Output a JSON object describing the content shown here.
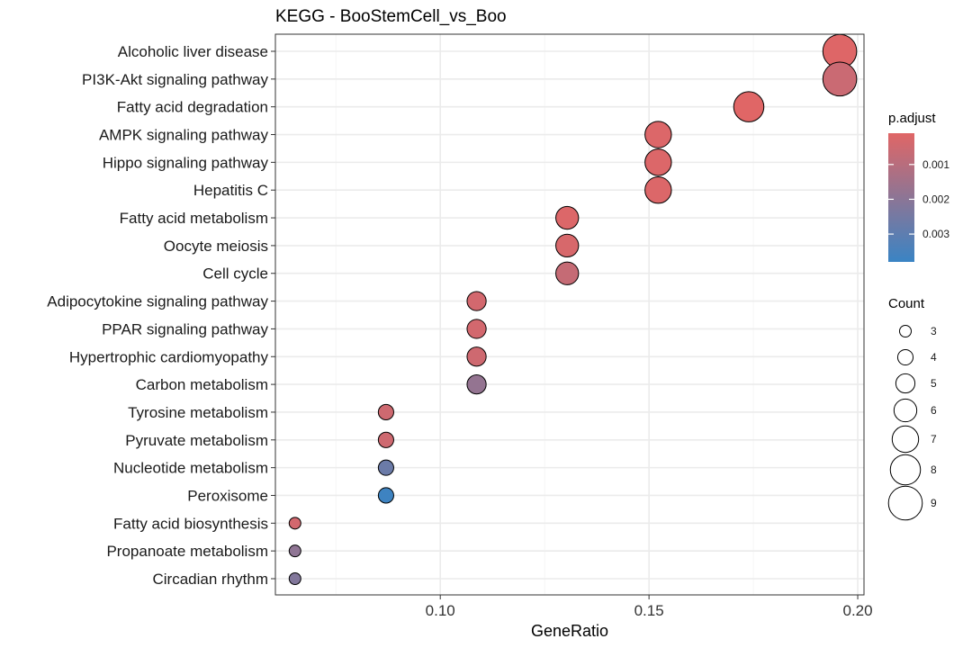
{
  "chart_data": {
    "type": "scatter",
    "title": "KEGG - BooStemCell_vs_Boo",
    "xlabel": "GeneRatio",
    "ylabel": "",
    "xlim": [
      0.0605,
      0.2015
    ],
    "x_ticks": [
      0.1,
      0.15,
      0.2
    ],
    "x_tick_labels": [
      "0.10",
      "0.15",
      "0.20"
    ],
    "grid": true,
    "categories": [
      "Alcoholic liver disease",
      "PI3K-Akt signaling pathway",
      "Fatty acid degradation",
      "AMPK signaling pathway",
      "Hippo signaling pathway",
      "Hepatitis C",
      "Fatty acid metabolism",
      "Oocyte meiosis",
      "Cell cycle",
      "Adipocytokine signaling pathway",
      "PPAR signaling pathway",
      "Hypertrophic cardiomyopathy",
      "Carbon metabolism",
      "Tyrosine metabolism",
      "Pyruvate metabolism",
      "Nucleotide metabolism",
      "Peroxisome",
      "Fatty acid biosynthesis",
      "Propanoate metabolism",
      "Circadian rhythm"
    ],
    "gene_ratio": [
      0.1957,
      0.1957,
      0.1739,
      0.1522,
      0.1522,
      0.1522,
      0.1304,
      0.1304,
      0.1304,
      0.1087,
      0.1087,
      0.1087,
      0.1087,
      0.087,
      0.087,
      0.087,
      0.087,
      0.0652,
      0.0652,
      0.0652
    ],
    "count": [
      9,
      9,
      8,
      7,
      7,
      7,
      6,
      6,
      6,
      5,
      5,
      5,
      5,
      4,
      4,
      4,
      4,
      3,
      3,
      3
    ],
    "p_adjust": [
      0.00015,
      0.0006,
      0.0001,
      0.0002,
      0.0002,
      0.0002,
      0.0002,
      0.0003,
      0.0007,
      0.0004,
      0.0004,
      0.0005,
      0.0018,
      0.0005,
      0.0005,
      0.0027,
      0.0037,
      0.0004,
      0.0019,
      0.0022
    ],
    "legend_color": {
      "title": "p.adjust",
      "min": 0.0001,
      "max": 0.0038,
      "ticks": [
        0.001,
        0.002,
        0.003
      ],
      "tick_labels": [
        "0.001",
        "0.002",
        "0.003"
      ],
      "low_color": "#e06666",
      "high_color": "#3a84c4",
      "placement": "right"
    },
    "legend_size": {
      "title": "Count",
      "values": [
        3,
        4,
        5,
        6,
        7,
        8,
        9
      ],
      "labels": [
        "3",
        "4",
        "5",
        "6",
        "7",
        "8",
        "9"
      ],
      "placement": "right"
    }
  }
}
